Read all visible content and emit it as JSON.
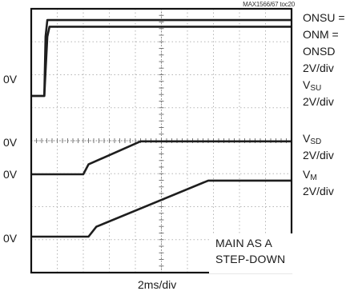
{
  "source_tag": "MAX1566/67 toc20",
  "chart_data": {
    "type": "line",
    "title": "",
    "xlabel": "2ms/div",
    "ylabel": "",
    "grid": true,
    "x_divisions": 10,
    "y_divisions": 8,
    "series": [
      {
        "name": "ONSU = ONM = ONSD",
        "scale": "2V/div",
        "reference": "0V",
        "x": [
          0,
          0.5,
          0.55,
          0.62,
          10
        ],
        "y": [
          0,
          0,
          1.8,
          2.3,
          2.3
        ]
      },
      {
        "name": "VSU",
        "scale": "2V/div",
        "reference": "0V",
        "x": [
          0,
          0.5,
          0.62,
          0.7,
          10
        ],
        "y": [
          0,
          0,
          1.8,
          2.1,
          2.1
        ]
      },
      {
        "name": "VSD",
        "scale": "2V/div",
        "reference": "0V",
        "x": [
          0,
          2.0,
          2.2,
          4.2,
          10
        ],
        "y": [
          0,
          0,
          0.3,
          1.0,
          1.0
        ]
      },
      {
        "name": "VM",
        "scale": "2V/div",
        "reference": "0V",
        "x": [
          0,
          2.2,
          2.5,
          6.8,
          10
        ],
        "y": [
          0,
          0,
          0.3,
          1.7,
          1.7
        ]
      }
    ],
    "left_labels": [
      "0V",
      "0V",
      "0V",
      "0V"
    ],
    "right_labels": {
      "onsu": "ONSU =",
      "onm": "ONM =",
      "onsd": "ONSD",
      "onsd_scale": "2V/div",
      "vsu_main": "V",
      "vsu_sub": "SU",
      "vsu_scale": "2V/div",
      "vsd_main": "V",
      "vsd_sub": "SD",
      "vsd_scale": "2V/div",
      "vm_main": "V",
      "vm_sub": "M",
      "vm_scale": "2V/div"
    },
    "annotation": [
      "MAIN AS A",
      "STEP-DOWN"
    ]
  }
}
